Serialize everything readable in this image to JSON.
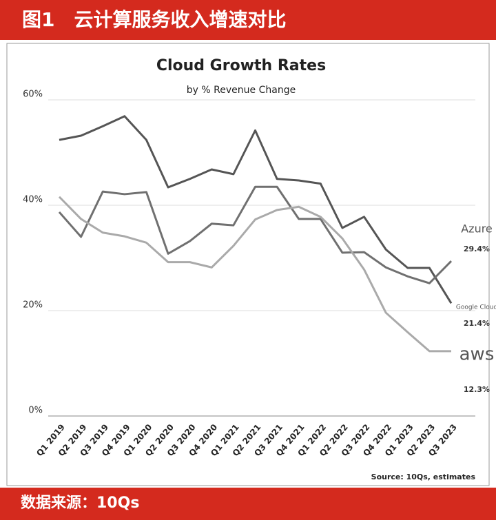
{
  "header": {
    "title": "图1　云计算服务收入增速对比"
  },
  "footer": {
    "source": "数据来源：10Qs"
  },
  "chart_data": {
    "type": "line",
    "title": "Cloud Growth Rates",
    "subtitle": "by % Revenue Change",
    "note": "Source: 10Qs, estimates",
    "categories": [
      "Q1 2019",
      "Q2 2019",
      "Q3 2019",
      "Q4 2019",
      "Q1 2020",
      "Q2 2020",
      "Q3 2020",
      "Q4 2020",
      "Q1 2021",
      "Q2 2021",
      "Q3 2021",
      "Q4 2021",
      "Q1 2022",
      "Q2 2022",
      "Q3 2022",
      "Q4 2022",
      "Q1 2023",
      "Q2 2023",
      "Q3 2023"
    ],
    "series": [
      {
        "name": "Google Cloud",
        "color": "#555555",
        "values": [
          52.4,
          53.2,
          55.0,
          56.9,
          52.4,
          43.4,
          45.0,
          46.8,
          45.9,
          54.2,
          45.0,
          44.7,
          44.1,
          35.7,
          37.8,
          31.6,
          28.1,
          28.1,
          21.4
        ],
        "value_labels": [
          null,
          null,
          null,
          null,
          null,
          null,
          null,
          null,
          null,
          null,
          null,
          null,
          null,
          null,
          null,
          null,
          null,
          null,
          "21.4%"
        ]
      },
      {
        "name": "Azure",
        "color": "#707070",
        "values": [
          38.7,
          34.0,
          42.6,
          42.1,
          42.5,
          30.8,
          33.2,
          36.5,
          36.2,
          43.5,
          43.5,
          37.4,
          37.4,
          31.0,
          31.1,
          28.2,
          26.5,
          25.2,
          29.4
        ],
        "value_labels": [
          null,
          null,
          null,
          null,
          null,
          null,
          null,
          null,
          null,
          null,
          null,
          null,
          null,
          null,
          null,
          null,
          null,
          null,
          "29.4%"
        ]
      },
      {
        "name": "aws",
        "color": "#aaaaaa",
        "values": [
          41.6,
          37.4,
          34.8,
          34.1,
          32.9,
          29.2,
          29.2,
          28.2,
          32.3,
          37.3,
          39.1,
          39.7,
          37.8,
          33.7,
          27.8,
          19.6,
          15.9,
          12.3,
          12.3
        ],
        "value_labels": [
          null,
          null,
          null,
          null,
          null,
          null,
          null,
          null,
          null,
          null,
          null,
          null,
          null,
          null,
          null,
          null,
          null,
          null,
          "12.3%"
        ]
      }
    ],
    "ylim": [
      0,
      60
    ],
    "yticks": [
      {
        "value": 0,
        "label": "0%"
      },
      {
        "value": 20,
        "label": "20%"
      },
      {
        "value": 40,
        "label": "40%"
      },
      {
        "value": 60,
        "label": "60%"
      }
    ],
    "grid": true
  }
}
